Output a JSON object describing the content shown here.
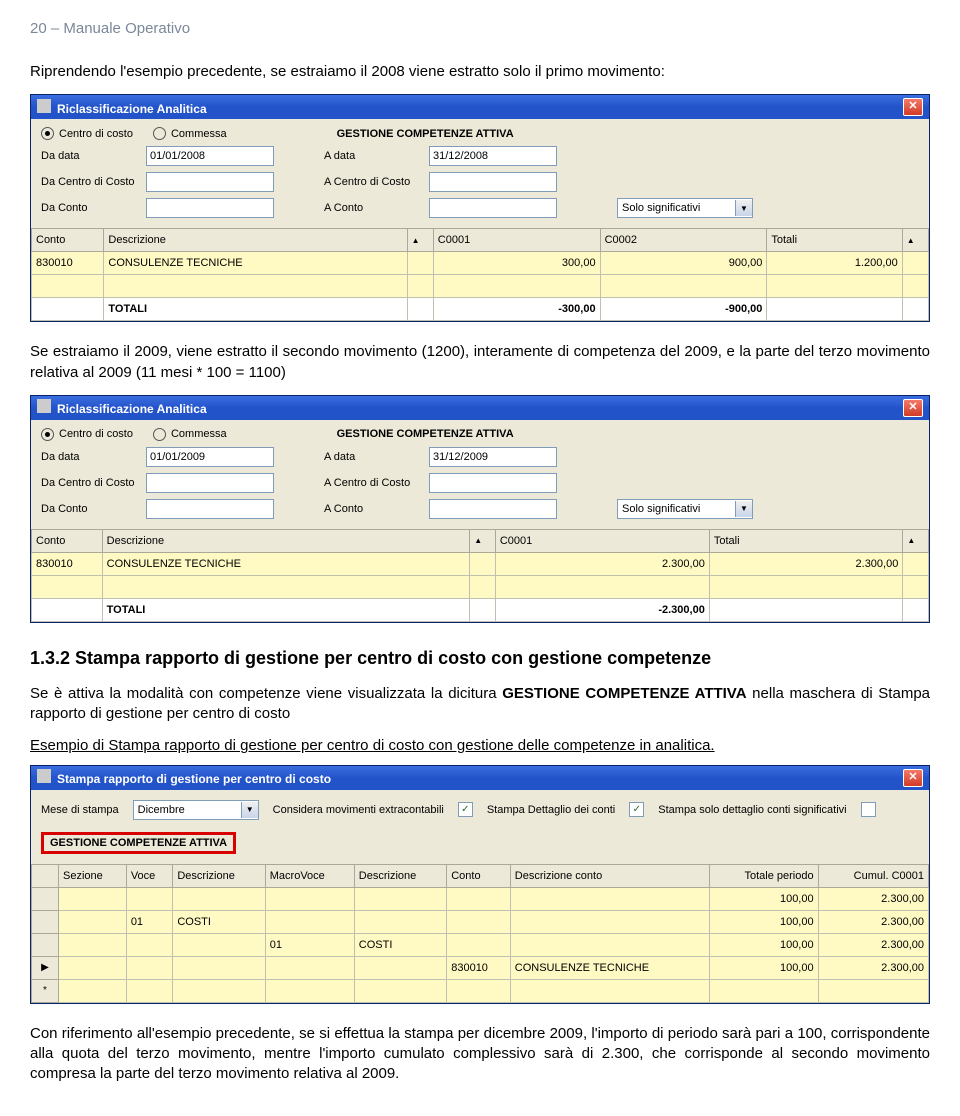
{
  "header": "20 – Manuale Operativo",
  "intro1": "Riprendendo l'esempio precedente, se estraiamo il 2008 viene estratto solo il primo movimento:",
  "intro2": "Se estraiamo il 2009, viene estratto il secondo movimento (1200), interamente di competenza del 2009, e la parte del terzo movimento relativa al 2009 (11 mesi * 100 = 1100)",
  "window1": {
    "title": "Riclassificazione Analitica",
    "radio1": "Centro di costo",
    "radio2": "Commessa",
    "active_label": "GESTIONE COMPETENZE ATTIVA",
    "labels": {
      "da_data": "Da data",
      "a_data": "A data",
      "da_centro": "Da Centro di Costo",
      "a_centro": "A Centro di Costo",
      "da_conto": "Da Conto",
      "a_conto": "A Conto"
    },
    "da_data_val": "01/01/2008",
    "a_data_val": "31/12/2008",
    "dropdown_val": "Solo significativi",
    "headers": [
      "Conto",
      "Descrizione",
      "C0001",
      "C0002",
      "Totali"
    ],
    "row": [
      "830010",
      "CONSULENZE TECNICHE",
      "300,00",
      "900,00",
      "1.200,00"
    ],
    "totals": [
      "TOTALI",
      "-300,00",
      "-900,00"
    ]
  },
  "window2": {
    "title": "Riclassificazione Analitica",
    "da_data_val": "01/01/2009",
    "a_data_val": "31/12/2009",
    "dropdown_val": "Solo significativi",
    "headers": [
      "Conto",
      "Descrizione",
      "C0001",
      "Totali"
    ],
    "row": [
      "830010",
      "CONSULENZE TECNICHE",
      "2.300,00",
      "2.300,00"
    ],
    "totals": [
      "TOTALI",
      "-2.300,00"
    ]
  },
  "section_heading": "1.3.2  Stampa rapporto di gestione per centro di costo con gestione competenze",
  "section_text": "Se è attiva la modalità con competenze viene visualizzata la dicitura <b>GESTIONE COMPETENZE ATTIVA</b> nella maschera di Stampa rapporto di gestione per centro di costo",
  "example_underline": "Esempio di Stampa rapporto di gestione per centro di costo con gestione delle competenze in analitica.",
  "stampa": {
    "title": "Stampa rapporto di gestione per centro di costo",
    "mese_label": "Mese di stampa",
    "mese_val": "Dicembre",
    "considera": "Considera movimenti extracontabili",
    "dettaglio": "Stampa Dettaglio dei conti",
    "solo_det": "Stampa solo dettaglio conti significativi",
    "red_label": "GESTIONE COMPETENZE ATTIVA",
    "headers": [
      "Sezione",
      "Voce",
      "Descrizione",
      "MacroVoce",
      "Descrizione",
      "Conto",
      "Descrizione conto",
      "Totale periodo",
      "Cumul. C0001"
    ],
    "rows": [
      [
        "",
        "",
        "",
        "",
        "",
        "",
        "",
        "100,00",
        "2.300,00"
      ],
      [
        "",
        "01",
        "COSTI",
        "",
        "",
        "",
        "",
        "100,00",
        "2.300,00"
      ],
      [
        "",
        "",
        "",
        "01",
        "COSTI",
        "",
        "",
        "100,00",
        "2.300,00"
      ],
      [
        "",
        "",
        "",
        "",
        "",
        "830010",
        "CONSULENZE TECNICHE",
        "100,00",
        "2.300,00"
      ]
    ]
  },
  "footer_text": "Con riferimento all'esempio precedente, se si effettua la stampa per dicembre 2009, l'importo di periodo sarà pari a 100, corrispondente alla quota del terzo movimento, mentre l'importo cumulato complessivo sarà di 2.300, che corrisponde al secondo movimento compresa la parte del terzo movimento relativa al 2009."
}
